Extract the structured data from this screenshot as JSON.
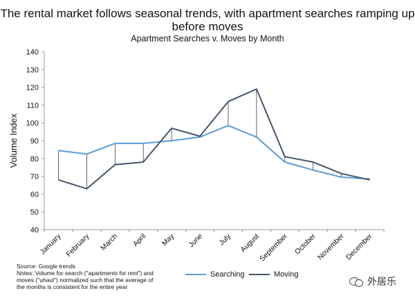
{
  "chart_data": {
    "type": "line",
    "title": "The rental market follows seasonal trends, with apartment searches ramping up before moves",
    "subtitle": "Apartment Searches v. Moves by Month",
    "ylabel": "Volume Index",
    "xlabel": "",
    "ylim": [
      40,
      140
    ],
    "yticks": [
      40,
      50,
      60,
      70,
      80,
      90,
      100,
      110,
      120,
      130,
      140
    ],
    "grid": false,
    "legend": "bottom-center",
    "categories": [
      "January",
      "February",
      "March",
      "April",
      "May",
      "June",
      "July",
      "August",
      "September",
      "October",
      "November",
      "December"
    ],
    "series": [
      {
        "name": "Searching",
        "color": "#5b9bd5",
        "values": [
          84.5,
          82.5,
          88.5,
          88.5,
          90,
          92,
          98.5,
          92,
          78,
          73.5,
          69.5,
          68.5
        ]
      },
      {
        "name": "Moving",
        "color": "#44546a",
        "values": [
          68,
          63,
          76.5,
          78,
          97,
          92.5,
          112,
          119,
          81,
          78,
          71.5,
          68
        ]
      }
    ],
    "difference_lines": true
  },
  "notes": {
    "source": "Source: Google trends",
    "line1": "Notes: Volume for search (\"apartments for rent\") and",
    "line2": "moves (\"uhaul\") normalized such that the average of",
    "line3": "the months is consistent for the entire year"
  },
  "watermark": {
    "text": "外居乐",
    "icon": "chat-bubbles-icon"
  }
}
